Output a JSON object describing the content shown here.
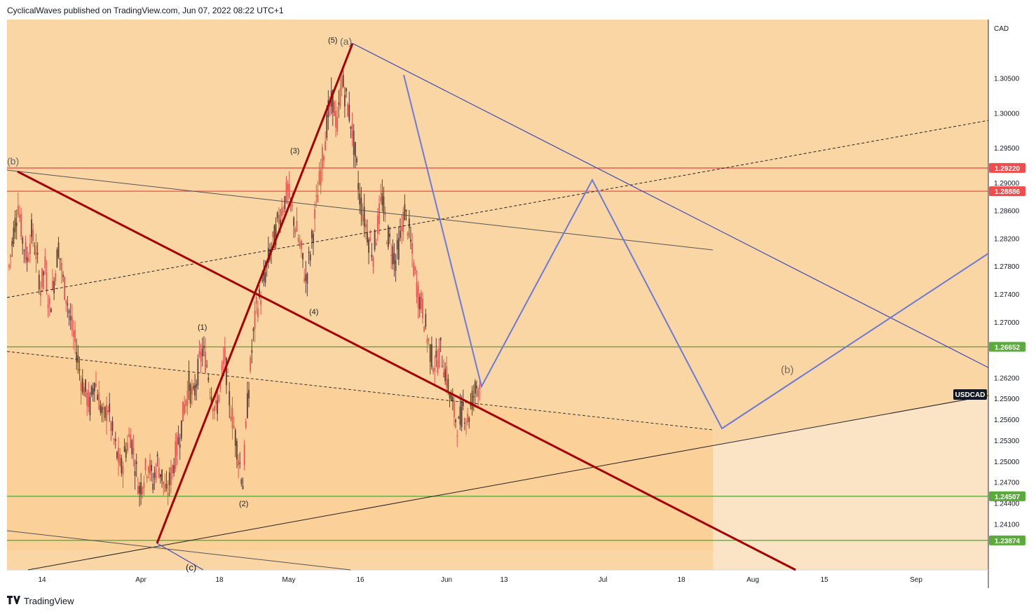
{
  "header": {
    "publish_line": "CyclicalWaves published on TradingView.com, Jun 07, 2022 08:22 UTC+1"
  },
  "footer": {
    "brand": "TradingView",
    "logo_icon": "tradingview-logo-icon"
  },
  "colors": {
    "plot_bg": "#fad6a5",
    "zone_fill": "#fccf96",
    "future_bg": "#fbe3c6",
    "candle_up": "#ef5350",
    "candle_down": "#5d4037",
    "red_line": "#a80000",
    "blue_line": "#3f4bb5",
    "light_blue": "#6b7ad6",
    "resistance": "#f24c4c",
    "support": "#5aab3b",
    "symbol_tag": "#131722"
  },
  "chart_data": {
    "type": "candlestick",
    "symbol": "USDCAD",
    "currency_label": "CAD",
    "ylim": [
      1.2345,
      1.3135
    ],
    "x_ticks": [
      "14",
      "Apr",
      "18",
      "May",
      "16",
      "Jun",
      "13",
      "Jul",
      "18",
      "Aug",
      "15",
      "Sep"
    ],
    "y_ticks": [
      "1.30500",
      "1.30000",
      "1.29500",
      "1.29000",
      "1.28600",
      "1.28200",
      "1.27800",
      "1.27400",
      "1.27000",
      "1.26200",
      "1.25900",
      "1.25600",
      "1.25300",
      "1.25000",
      "1.24700",
      "1.24400",
      "1.24100"
    ],
    "last_price_tag": "USDCAD",
    "price_lines": [
      {
        "value": 1.2922,
        "label": "1.29220",
        "kind": "resistance"
      },
      {
        "value": 1.28886,
        "label": "1.28886",
        "kind": "resistance"
      },
      {
        "value": 1.26652,
        "label": "1.26652",
        "kind": "support"
      },
      {
        "value": 1.24507,
        "label": "1.24507",
        "kind": "support"
      },
      {
        "value": 1.23874,
        "label": "1.23874",
        "kind": "support"
      }
    ],
    "wave_labels": [
      "(b)",
      "(1)",
      "(2)",
      "(3)",
      "(4)",
      "(5)",
      "(a)",
      "(b)",
      "(c)"
    ],
    "trend": [
      [
        0,
        1.278
      ],
      [
        1,
        1.283
      ],
      [
        2,
        1.287
      ],
      [
        3,
        1.282
      ],
      [
        4,
        1.279
      ],
      [
        5,
        1.283
      ],
      [
        6,
        1.28
      ],
      [
        7,
        1.275
      ],
      [
        8,
        1.278
      ],
      [
        9,
        1.272
      ],
      [
        10,
        1.276
      ],
      [
        11,
        1.281
      ],
      [
        12,
        1.276
      ],
      [
        13,
        1.273
      ],
      [
        14,
        1.269
      ],
      [
        15,
        1.266
      ],
      [
        16,
        1.262
      ],
      [
        17,
        1.26
      ],
      [
        18,
        1.258
      ],
      [
        19,
        1.262
      ],
      [
        20,
        1.259
      ],
      [
        21,
        1.256
      ],
      [
        22,
        1.258
      ],
      [
        23,
        1.254
      ],
      [
        24,
        1.251
      ],
      [
        25,
        1.249
      ],
      [
        26,
        1.252
      ],
      [
        27,
        1.254
      ],
      [
        28,
        1.25
      ],
      [
        29,
        1.246
      ],
      [
        30,
        1.248
      ],
      [
        31,
        1.25
      ],
      [
        32,
        1.247
      ],
      [
        33,
        1.25
      ],
      [
        34,
        1.248
      ],
      [
        35,
        1.245
      ],
      [
        36,
        1.248
      ],
      [
        37,
        1.251
      ],
      [
        38,
        1.254
      ],
      [
        39,
        1.258
      ],
      [
        40,
        1.261
      ],
      [
        41,
        1.259
      ],
      [
        42,
        1.263
      ],
      [
        43,
        1.266
      ],
      [
        44,
        1.264
      ],
      [
        45,
        1.26
      ],
      [
        46,
        1.257
      ],
      [
        47,
        1.261
      ],
      [
        48,
        1.265
      ],
      [
        49,
        1.259
      ],
      [
        50,
        1.255
      ],
      [
        51,
        1.251
      ],
      [
        52,
        1.247
      ],
      [
        53,
        1.258
      ],
      [
        54,
        1.266
      ],
      [
        55,
        1.272
      ],
      [
        56,
        1.274
      ],
      [
        57,
        1.277
      ],
      [
        58,
        1.28
      ],
      [
        59,
        1.282
      ],
      [
        60,
        1.285
      ],
      [
        61,
        1.287
      ],
      [
        62,
        1.289
      ],
      [
        63,
        1.286
      ],
      [
        64,
        1.283
      ],
      [
        65,
        1.28
      ],
      [
        66,
        1.276
      ],
      [
        67,
        1.28
      ],
      [
        68,
        1.285
      ],
      [
        69,
        1.29
      ],
      [
        70,
        1.295
      ],
      [
        71,
        1.3
      ],
      [
        72,
        1.302
      ],
      [
        73,
        1.298
      ],
      [
        74,
        1.305
      ],
      [
        75,
        1.302
      ],
      [
        76,
        1.299
      ],
      [
        77,
        1.294
      ],
      [
        78,
        1.288
      ],
      [
        79,
        1.285
      ],
      [
        80,
        1.282
      ],
      [
        81,
        1.28
      ],
      [
        82,
        1.284
      ],
      [
        83,
        1.288
      ],
      [
        84,
        1.283
      ],
      [
        85,
        1.281
      ],
      [
        86,
        1.279
      ],
      [
        87,
        1.282
      ],
      [
        88,
        1.286
      ],
      [
        89,
        1.283
      ],
      [
        90,
        1.278
      ],
      [
        91,
        1.274
      ],
      [
        92,
        1.272
      ],
      [
        93,
        1.268
      ],
      [
        94,
        1.265
      ],
      [
        95,
        1.264
      ],
      [
        96,
        1.266
      ],
      [
        97,
        1.263
      ],
      [
        98,
        1.26
      ],
      [
        99,
        1.257
      ],
      [
        100,
        1.255
      ],
      [
        101,
        1.258
      ],
      [
        102,
        1.256
      ],
      [
        103,
        1.259
      ],
      [
        104,
        1.261
      ]
    ]
  }
}
